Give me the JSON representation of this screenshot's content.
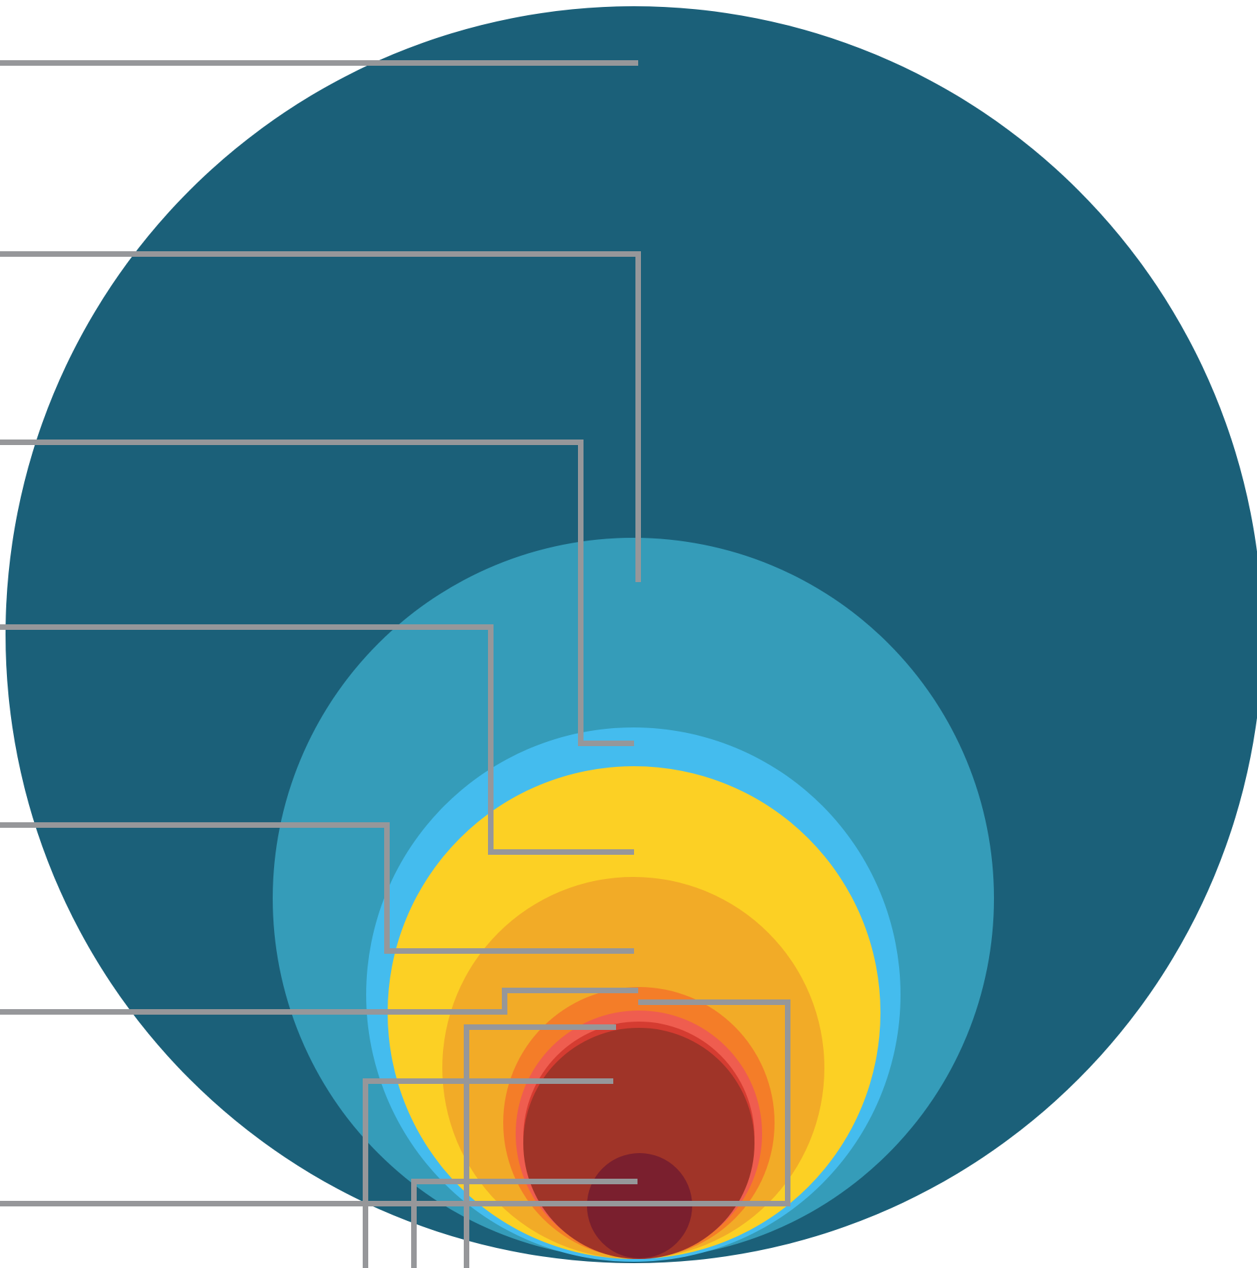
{
  "diagram": {
    "type": "nested-circles-with-leader-lines",
    "background_color": "#ffffff",
    "leader_line_color": "#96979a",
    "circles": [
      {
        "id": "level-1",
        "color": "#1b6079"
      },
      {
        "id": "level-2",
        "color": "#359cb9"
      },
      {
        "id": "level-3",
        "color": "#44bcee"
      },
      {
        "id": "level-4",
        "color": "#fcd024"
      },
      {
        "id": "level-5",
        "color": "#f2ab27"
      },
      {
        "id": "level-6",
        "color": "#f47d28"
      },
      {
        "id": "level-7",
        "color": "#ef5d4f"
      },
      {
        "id": "level-8",
        "color": "#d53c31"
      },
      {
        "id": "level-9",
        "color": "#a03428"
      },
      {
        "id": "level-10",
        "color": "#7a1f2e"
      }
    ],
    "leader_lines": [
      {
        "id": "leader-1",
        "target": "level-1"
      },
      {
        "id": "leader-2",
        "target": "level-2"
      },
      {
        "id": "leader-3",
        "target": "level-3"
      },
      {
        "id": "leader-4",
        "target": "level-4"
      },
      {
        "id": "leader-5",
        "target": "level-5"
      },
      {
        "id": "leader-6",
        "target": "level-6"
      },
      {
        "id": "leader-7",
        "target": "level-7"
      },
      {
        "id": "leader-8",
        "target": "level-8"
      },
      {
        "id": "leader-9",
        "target": "level-9"
      },
      {
        "id": "leader-10",
        "target": "level-10"
      },
      {
        "id": "leader-11",
        "target": "level-10"
      }
    ],
    "labels": []
  }
}
